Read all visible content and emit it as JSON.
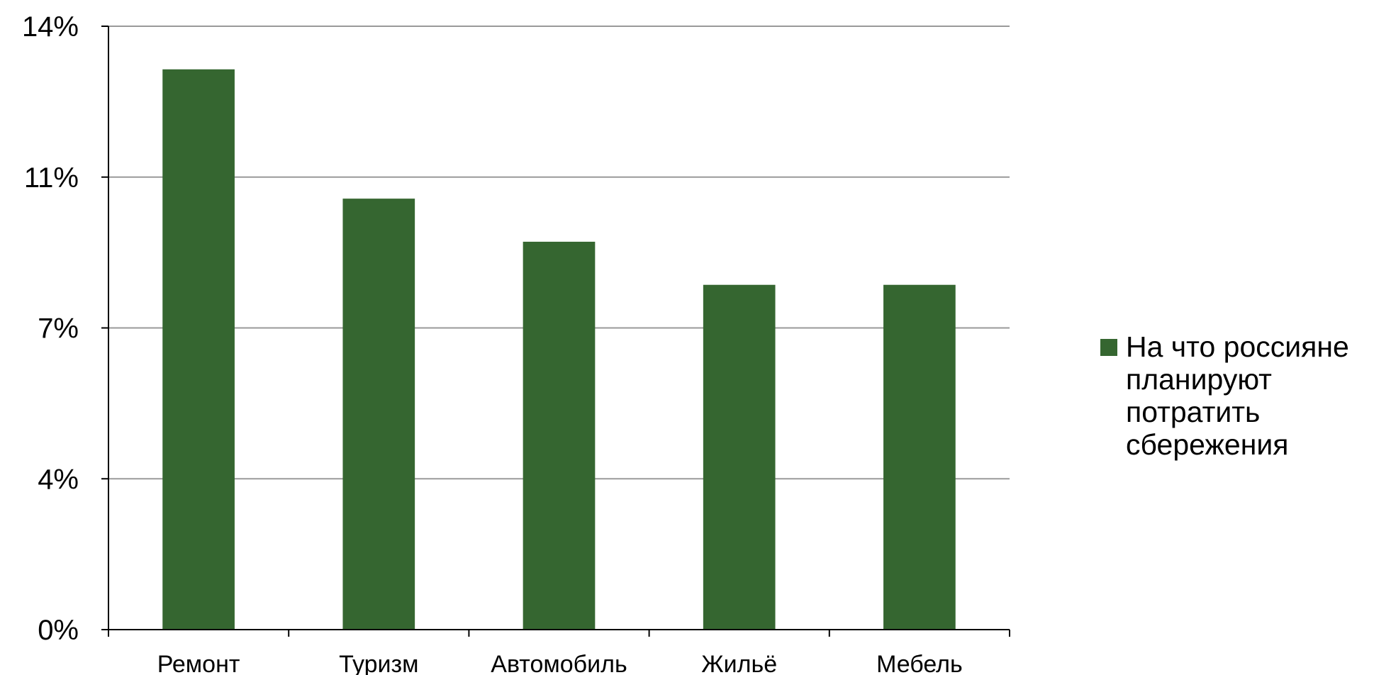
{
  "chart_data": {
    "type": "bar",
    "categories": [
      "Ремонт",
      "Туризм",
      "Автомобиль",
      "Жильё",
      "Мебель"
    ],
    "series": [
      {
        "name": "На что россияне планируют потратить сбережения",
        "values": [
          13,
          10,
          9,
          8,
          8
        ]
      }
    ],
    "y_ticks": [
      "0%",
      "4%",
      "7%",
      "11%",
      "14%"
    ],
    "ylim": [
      0,
      14
    ],
    "grid": true,
    "legend_position": "right",
    "colors": {
      "bar": "#356630",
      "grid": "#9a9a9a",
      "axis": "#000000"
    }
  }
}
